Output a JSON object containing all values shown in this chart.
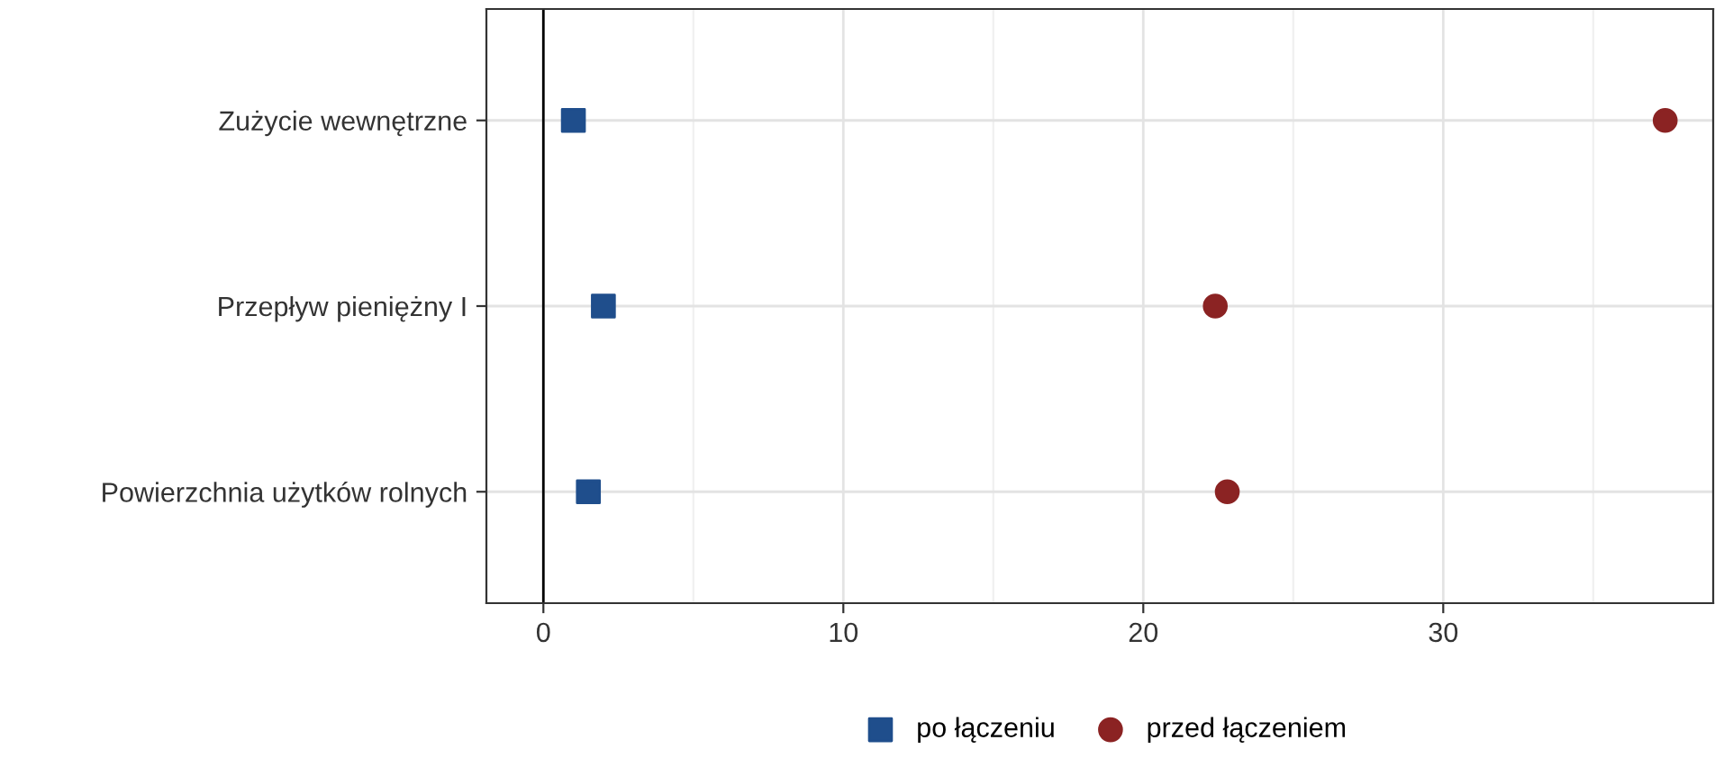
{
  "chart_data": {
    "type": "scatter",
    "orientation": "horizontal",
    "categories": [
      "Zużycie wewnętrzne",
      "Przepływ pieniężny I",
      "Powierzchnia użytków rolnych"
    ],
    "series": [
      {
        "name": "po łączeniu",
        "color": "#1f4e8c",
        "marker": "square",
        "values": [
          1.0,
          2.0,
          1.5
        ]
      },
      {
        "name": "przed łączeniem",
        "color": "#8b2323",
        "marker": "circle",
        "values": [
          37.4,
          22.4,
          22.8
        ]
      }
    ],
    "xlim": [
      -1.9,
      39
    ],
    "xticks": [
      0,
      10,
      20,
      30
    ],
    "grid": true,
    "legend": "bottom",
    "ref_lines": [
      {
        "axis": "x",
        "value": 0,
        "color": "#000000"
      }
    ]
  }
}
